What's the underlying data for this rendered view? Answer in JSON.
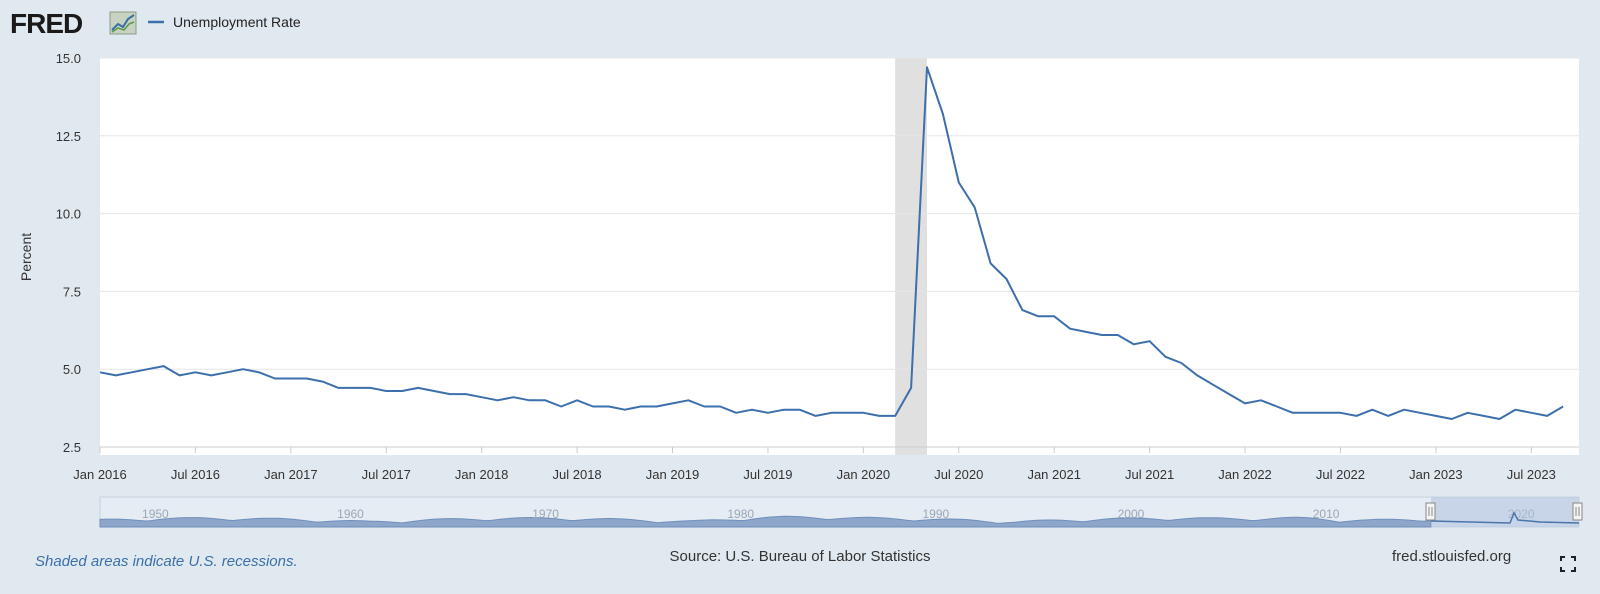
{
  "logo": {
    "text": "FRED"
  },
  "legend": {
    "series_name": "Unemployment Rate"
  },
  "footer": {
    "recession_note": "Shaded areas indicate U.S. recessions.",
    "source": "Source: U.S. Bureau of Labor Statistics",
    "site": "fred.stlouisfed.org"
  },
  "navigator": {
    "decade_labels": [
      "1950",
      "1960",
      "1970",
      "1980",
      "1990",
      "2000",
      "2010",
      "2020"
    ]
  },
  "colors": {
    "line": "#3c6fab",
    "recession": "#e0e0e0",
    "plot_bg": "#ffffff",
    "page_bg": "#e1e9f0",
    "navigator_fill": "#8da6c9",
    "navigator_mask": "#c4d3e8"
  },
  "chart_data": {
    "type": "line",
    "title": "",
    "xlabel": "",
    "ylabel": "Percent",
    "ylim": [
      2.5,
      15.0
    ],
    "xlim": [
      "2016-01",
      "2023-10"
    ],
    "yticks": [
      "2.5",
      "5.0",
      "7.5",
      "10.0",
      "12.5",
      "15.0"
    ],
    "xtick_labels": [
      "Jan 2016",
      "Jul 2016",
      "Jan 2017",
      "Jul 2017",
      "Jan 2018",
      "Jul 2018",
      "Jan 2019",
      "Jul 2019",
      "Jan 2020",
      "Jul 2020",
      "Jan 2021",
      "Jul 2021",
      "Jan 2022",
      "Jul 2022",
      "Jan 2023",
      "Jul 2023"
    ],
    "grid": true,
    "legend_position": "top-left",
    "recessions": [
      {
        "start": "2020-03",
        "end": "2020-04"
      }
    ],
    "series": [
      {
        "name": "Unemployment Rate",
        "start": "2016-01",
        "frequency": "monthly",
        "values": [
          4.9,
          4.8,
          4.9,
          5.0,
          5.1,
          4.8,
          4.9,
          4.8,
          4.9,
          5.0,
          4.9,
          4.7,
          4.7,
          4.7,
          4.6,
          4.4,
          4.4,
          4.4,
          4.3,
          4.3,
          4.4,
          4.3,
          4.2,
          4.2,
          4.1,
          4.0,
          4.1,
          4.0,
          4.0,
          3.8,
          4.0,
          3.8,
          3.8,
          3.7,
          3.8,
          3.8,
          3.9,
          4.0,
          3.8,
          3.8,
          3.6,
          3.7,
          3.6,
          3.7,
          3.7,
          3.5,
          3.6,
          3.6,
          3.6,
          3.5,
          3.5,
          4.4,
          14.7,
          13.2,
          11.0,
          10.2,
          8.4,
          7.9,
          6.9,
          6.7,
          6.7,
          6.3,
          6.2,
          6.1,
          6.1,
          5.8,
          5.9,
          5.4,
          5.2,
          4.8,
          4.5,
          4.2,
          3.9,
          4.0,
          3.8,
          3.6,
          3.6,
          3.6,
          3.6,
          3.5,
          3.7,
          3.5,
          3.7,
          3.6,
          3.5,
          3.4,
          3.6,
          3.5,
          3.4,
          3.7,
          3.6,
          3.5,
          3.8
        ]
      }
    ]
  }
}
